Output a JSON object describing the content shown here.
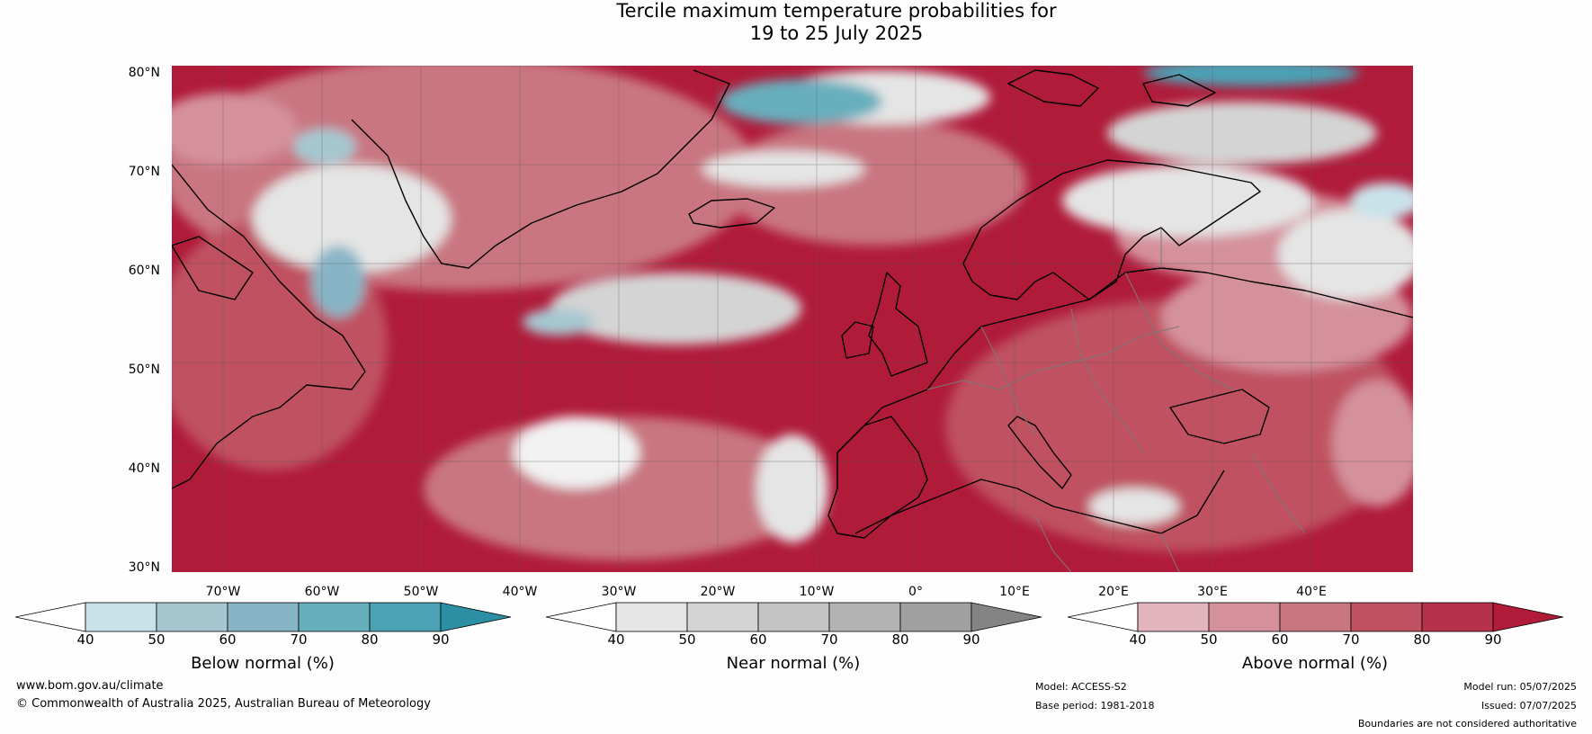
{
  "title_line1": "Tercile maximum temperature probabilities for",
  "title_line2": "19 to 25 July 2025",
  "lat_labels": [
    "80°N",
    "70°N",
    "60°N",
    "50°N",
    "40°N",
    "30°N"
  ],
  "lon_labels": [
    "70°W",
    "60°W",
    "50°W",
    "40°W",
    "30°W",
    "20°W",
    "10°W",
    "0°",
    "10°E",
    "20°E",
    "30°E",
    "40°E"
  ],
  "colorbars": [
    {
      "label": "Below normal (%)",
      "ticks": [
        "40",
        "50",
        "60",
        "70",
        "80",
        "90"
      ],
      "colors": [
        "#ffffff",
        "#c9e2ea",
        "#a6c7d0",
        "#88b5c6",
        "#68afbd",
        "#4ba2b5",
        "#2c8fa4"
      ]
    },
    {
      "label": "Near normal (%)",
      "ticks": [
        "40",
        "50",
        "60",
        "70",
        "80",
        "90"
      ],
      "colors": [
        "#ffffff",
        "#e5e5e5",
        "#d4d4d4",
        "#c4c4c4",
        "#b3b3b3",
        "#a0a0a0",
        "#848484"
      ]
    },
    {
      "label": "Above normal (%)",
      "ticks": [
        "40",
        "50",
        "60",
        "70",
        "80",
        "90"
      ],
      "colors": [
        "#ffffff",
        "#e2b5bd",
        "#d4919c",
        "#c97680",
        "#bf5160",
        "#b5324a",
        "#b01b3a"
      ]
    }
  ],
  "footer": {
    "url": "www.bom.gov.au/climate",
    "copyright": "© Commonwealth of Australia 2025, Australian Bureau of Meteorology",
    "model": "Model: ACCESS-S2",
    "base_period": "Base period: 1981-2018",
    "model_run": "Model run: 05/07/2025",
    "issued": "Issued: 07/07/2025",
    "disclaimer": "Boundaries are not considered authoritative"
  }
}
